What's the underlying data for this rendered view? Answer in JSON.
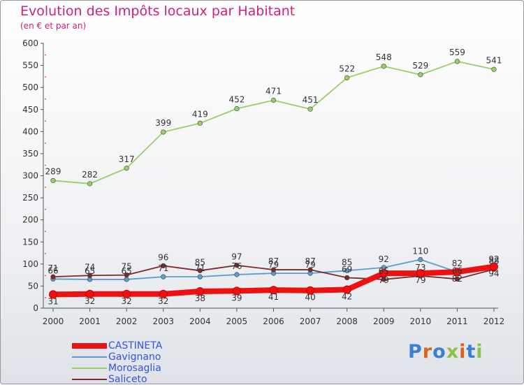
{
  "header": {
    "title": "Evolution des Impôts locaux par Habitant",
    "subtitle": "(en € et par an)"
  },
  "colors": {
    "title": "#d0207a",
    "axis": "#555555",
    "legend_text": "#3355dd"
  },
  "chart_data": {
    "type": "line",
    "title": "Evolution des Impôts locaux par Habitant",
    "subtitle": "(en € et par an)",
    "xlabel": "",
    "ylabel": "",
    "x": [
      "2000",
      "2001",
      "2002",
      "2003",
      "2004",
      "2005",
      "2006",
      "2007",
      "2008",
      "2009",
      "2010",
      "2011",
      "2012"
    ],
    "ylim": [
      0,
      600
    ],
    "yticks": [
      0,
      50,
      100,
      150,
      200,
      250,
      300,
      350,
      400,
      450,
      500,
      550,
      600
    ],
    "grid": false,
    "legend_position": "bottom-left",
    "series": [
      {
        "name": "CASTINETA",
        "color": "#ee1111",
        "values": [
          31,
          32,
          32,
          32,
          38,
          39,
          41,
          40,
          42,
          79,
          79,
          82,
          94
        ],
        "labels": [
          "31",
          "32",
          "32",
          "32",
          "38",
          "39",
          "41",
          "40",
          "42",
          "79",
          "79",
          "82",
          "94"
        ]
      },
      {
        "name": "Gavignano",
        "color": "#5c9ccc",
        "values": [
          66,
          65,
          65,
          71,
          71,
          76,
          79,
          79,
          85,
          92,
          110,
          82,
          92
        ],
        "labels": [
          "66",
          "65",
          "65",
          "71",
          "71",
          "76",
          "79",
          "79",
          "85",
          "92",
          "110",
          "82",
          "92"
        ]
      },
      {
        "name": "Morosaglia",
        "color": "#99d066",
        "values": [
          289,
          282,
          317,
          399,
          419,
          452,
          471,
          451,
          522,
          548,
          529,
          559,
          541
        ],
        "labels": [
          "289",
          "282",
          "317",
          "399",
          "419",
          "452",
          "471",
          "451",
          "522",
          "548",
          "529",
          "559",
          "541"
        ]
      },
      {
        "name": "Saliceto",
        "color": "#7a2a2a",
        "values": [
          71,
          74,
          75,
          96,
          85,
          97,
          87,
          87,
          69,
          65,
          73,
          66,
          88
        ],
        "labels": [
          "71",
          "74",
          "75",
          "96",
          "85",
          "97",
          "87",
          "87",
          "69",
          "65",
          "73",
          "66",
          "88"
        ]
      }
    ]
  },
  "logo": {
    "letters": [
      "P",
      "r",
      "o",
      "x",
      "i",
      "t",
      "i"
    ],
    "colors": [
      "#3a7fd0",
      "#e0601a",
      "#3a7fd0",
      "#8bc34a",
      "#e0601a",
      "#3a7fd0",
      "#8bc34a"
    ],
    "text": "Proxiti"
  }
}
